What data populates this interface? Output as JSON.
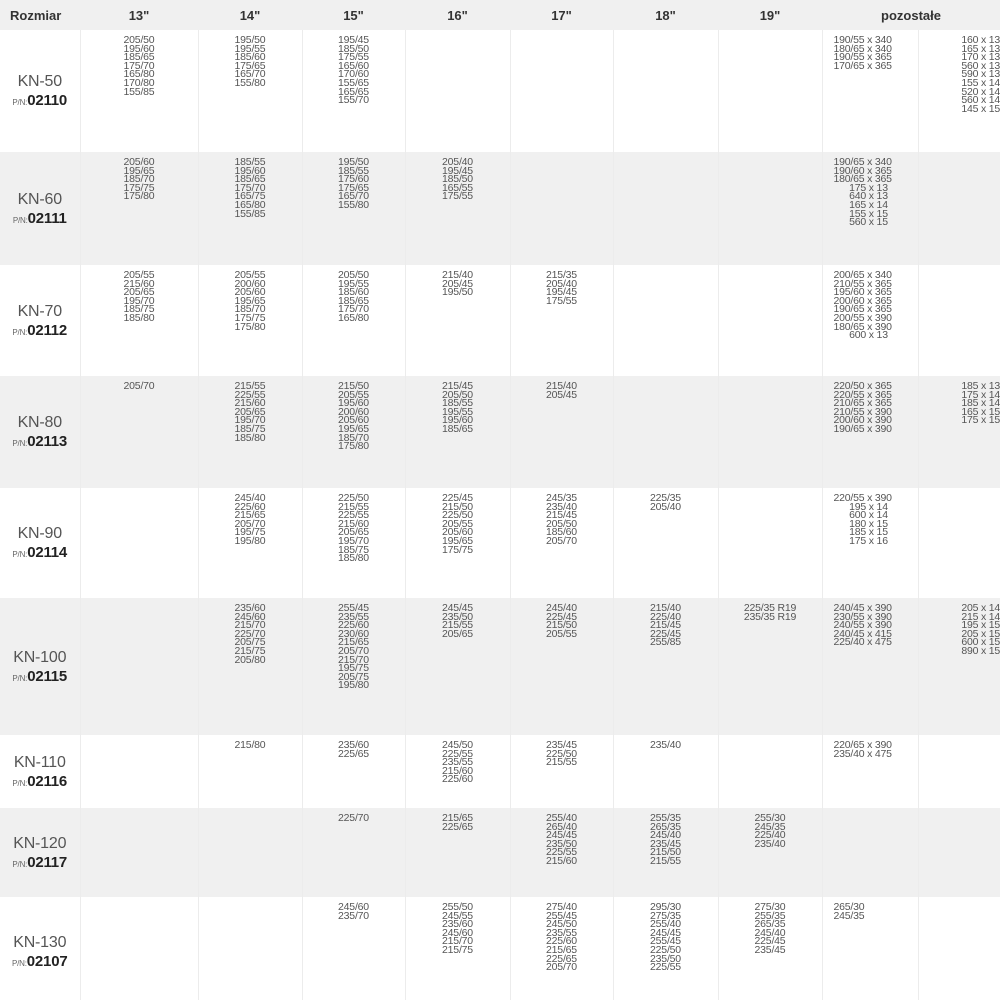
{
  "headers": [
    "Rozmiar",
    "13\"",
    "14\"",
    "15\"",
    "16\"",
    "17\"",
    "18\"",
    "19\"",
    "pozostałe"
  ],
  "pn_label": "P/N:",
  "rows": [
    {
      "model": "KN-50",
      "pn": "02110",
      "cells": [
        [
          "205/50",
          "195/60",
          "185/65",
          "175/70",
          "165/80",
          "170/80",
          "155/85"
        ],
        [
          "195/50",
          "195/55",
          "185/60",
          "175/65",
          "165/70",
          "155/80"
        ],
        [
          "195/45",
          "185/50",
          "175/55",
          "165/60",
          "170/60",
          "155/65",
          "165/65",
          "155/70"
        ],
        [],
        [],
        [],
        [],
        [
          "190/55 x 340",
          "180/65 x 340",
          "190/55 x 365",
          "170/65 x 365"
        ],
        [
          "160 x 13",
          "165 x 13",
          "170 x 13",
          "560 x 13",
          "590 x 13",
          "155 x 14",
          "520 x 14",
          "560 x 14",
          "145 x 15"
        ]
      ]
    },
    {
      "model": "KN-60",
      "pn": "02111",
      "cells": [
        [
          "205/60",
          "195/65",
          "185/70",
          "175/75",
          "175/80"
        ],
        [
          "185/55",
          "195/60",
          "185/65",
          "175/70",
          "165/75",
          "165/80",
          "155/85"
        ],
        [
          "195/50",
          "185/55",
          "175/60",
          "175/65",
          "165/70",
          "155/80"
        ],
        [
          "205/40",
          "195/45",
          "185/50",
          "165/55",
          "175/55"
        ],
        [],
        [],
        [],
        [
          "190/65 x 340",
          "190/60 x 365",
          "180/65 x 365",
          "175 x 13",
          "640 x 13",
          "165 x 14",
          "155 x 15",
          "560 x 15"
        ],
        []
      ]
    },
    {
      "model": "KN-70",
      "pn": "02112",
      "cells": [
        [
          "205/55",
          "215/60",
          "205/65",
          "195/70",
          "185/75",
          "185/80"
        ],
        [
          "205/55",
          "200/60",
          "205/60",
          "195/65",
          "185/70",
          "175/75",
          "175/80"
        ],
        [
          "205/50",
          "195/55",
          "185/60",
          "185/65",
          "175/70",
          "165/80"
        ],
        [
          "215/40",
          "205/45",
          "195/50"
        ],
        [
          "215/35",
          "205/40",
          "195/45",
          "175/55"
        ],
        [],
        [],
        [
          "200/65 x 340",
          "210/55 x 365",
          "195/60 x 365",
          "200/60 x 365",
          "190/65 x 365",
          "200/55 x 390",
          "180/65 x 390",
          "600 x 13"
        ],
        []
      ]
    },
    {
      "model": "KN-80",
      "pn": "02113",
      "cells": [
        [
          "205/70"
        ],
        [
          "215/55",
          "225/55",
          "215/60",
          "205/65",
          "195/70",
          "185/75",
          "185/80"
        ],
        [
          "215/50",
          "205/55",
          "195/60",
          "200/60",
          "205/60",
          "195/65",
          "185/70",
          "175/80"
        ],
        [
          "215/45",
          "205/50",
          "185/55",
          "195/55",
          "195/60",
          "185/65"
        ],
        [
          "215/40",
          "205/45"
        ],
        [],
        [],
        [
          "220/50 x 365",
          "220/55 x 365",
          "210/65 x 365",
          "210/55 x 390",
          "200/60 x 390",
          "190/65 x 390"
        ],
        [
          "185 x 13",
          "175 x 14",
          "185 x 14",
          "165 x 15",
          "175 x 15"
        ]
      ]
    },
    {
      "model": "KN-90",
      "pn": "02114",
      "cells": [
        [],
        [
          "245/40",
          "225/60",
          "215/65",
          "205/70",
          "195/75",
          "195/80"
        ],
        [
          "225/50",
          "215/55",
          "225/55",
          "215/60",
          "205/65",
          "195/70",
          "185/75",
          "185/80"
        ],
        [
          "225/45",
          "215/50",
          "225/50",
          "205/55",
          "205/60",
          "195/65",
          "175/75"
        ],
        [
          "245/35",
          "235/40",
          "215/45",
          "205/50",
          "185/60",
          "205/70"
        ],
        [
          "225/35",
          "205/40"
        ],
        [],
        [
          "220/55 x 390",
          "195 x 14",
          "600 x 14",
          "180 x 15",
          "185 x 15",
          "175 x 16"
        ],
        []
      ]
    },
    {
      "model": "KN-100",
      "pn": "02115",
      "cells": [
        [],
        [
          "235/60",
          "245/60",
          "215/70",
          "225/70",
          "205/75",
          "215/75",
          "205/80"
        ],
        [
          "255/45",
          "235/55",
          "225/60",
          "230/60",
          "215/65",
          "205/70",
          "215/70",
          "195/75",
          "205/75",
          "195/80"
        ],
        [
          "245/45",
          "235/50",
          "215/55",
          "205/65"
        ],
        [
          "245/40",
          "225/45",
          "215/50",
          "205/55"
        ],
        [
          "215/40",
          "225/40",
          "215/45",
          "225/45",
          "255/85"
        ],
        [
          "225/35 R19",
          "235/35 R19"
        ],
        [
          "240/45 x 390",
          "230/55 x 390",
          "240/55 x 390",
          "240/45 x 415",
          "225/40 x 475"
        ],
        [
          "205 x 14",
          "215 x 14",
          "195 x 15",
          "205 x 15",
          "600 x 15",
          "890 x 15"
        ]
      ]
    },
    {
      "model": "KN-110",
      "pn": "02116",
      "cells": [
        [],
        [
          "215/80"
        ],
        [
          "235/60",
          "225/65"
        ],
        [
          "245/50",
          "225/55",
          "235/55",
          "215/60",
          "225/60"
        ],
        [
          "235/45",
          "225/50",
          "215/55"
        ],
        [
          "235/40"
        ],
        [],
        [
          "220/65 x 390",
          "235/40 x 475"
        ],
        []
      ]
    },
    {
      "model": "KN-120",
      "pn": "02117",
      "cells": [
        [],
        [],
        [
          "225/70"
        ],
        [
          "215/65",
          "225/65"
        ],
        [
          "255/40",
          "265/40",
          "245/45",
          "235/50",
          "225/55",
          "215/60"
        ],
        [
          "255/35",
          "265/35",
          "245/40",
          "235/45",
          "215/50",
          "215/55"
        ],
        [
          "255/30",
          "245/35",
          "225/40",
          "235/40"
        ],
        [],
        []
      ]
    },
    {
      "model": "KN-130",
      "pn": "02107",
      "cells": [
        [],
        [],
        [
          "245/60",
          "235/70"
        ],
        [
          "255/50",
          "245/55",
          "235/60",
          "245/60",
          "215/70",
          "215/75"
        ],
        [
          "275/40",
          "255/45",
          "245/50",
          "235/55",
          "225/60",
          "215/65",
          "225/65",
          "205/70"
        ],
        [
          "295/30",
          "275/35",
          "255/40",
          "245/45",
          "255/45",
          "225/50",
          "235/50",
          "225/55"
        ],
        [
          "275/30",
          "255/35",
          "265/35",
          "245/40",
          "225/45",
          "235/45"
        ],
        [
          "265/30",
          "245/35"
        ],
        []
      ]
    }
  ]
}
